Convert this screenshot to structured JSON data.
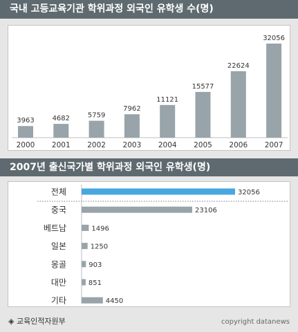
{
  "colors": {
    "header_bg": "#5e6a70",
    "bar": "#98a4aa",
    "highlight_bar": "#47a7de",
    "axis_text": "#333333",
    "value_text": "#333333"
  },
  "chart_data": [
    {
      "type": "bar",
      "orientation": "vertical",
      "title": "국내 고등교육기관 학위과정 외국인 유학생 수(명)",
      "categories": [
        "2000",
        "2001",
        "2002",
        "2003",
        "2004",
        "2005",
        "2006",
        "2007"
      ],
      "values": [
        3963,
        4682,
        5759,
        7962,
        11121,
        15577,
        22624,
        32056
      ],
      "ylim": [
        0,
        32056
      ],
      "grid": false
    },
    {
      "type": "bar",
      "orientation": "horizontal",
      "title": "2007년 출신국가별 학위과정 외국인 유학생(명)",
      "categories": [
        "전체",
        "중국",
        "베트남",
        "일본",
        "몽골",
        "대만",
        "기타"
      ],
      "values": [
        32056,
        23106,
        1496,
        1250,
        903,
        851,
        4450
      ],
      "highlight_index": 0,
      "xlim": [
        0,
        32056
      ],
      "grid": false
    }
  ],
  "footer": {
    "source": "◈ 교육인적자원부",
    "copyright": "copyright datanews"
  }
}
